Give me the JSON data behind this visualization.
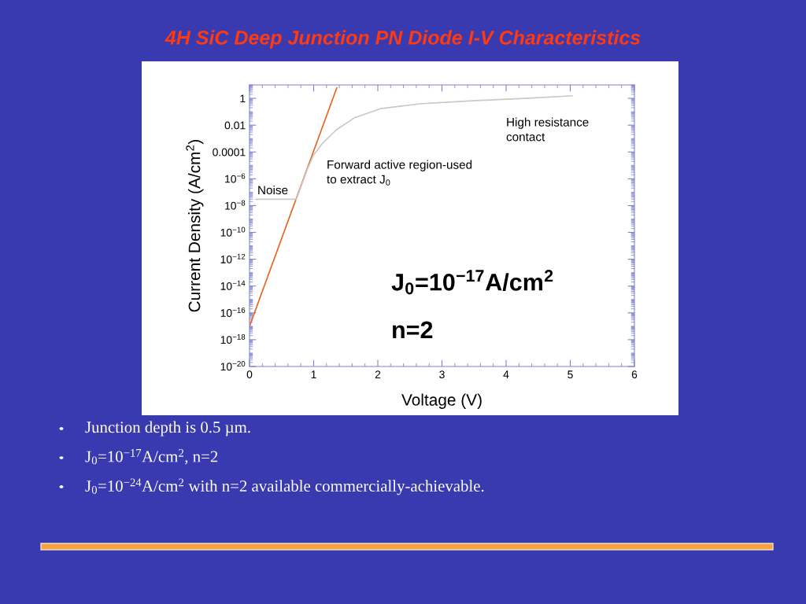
{
  "chart_data": {
    "type": "line",
    "title": "4H SiC Deep Junction PN Diode I-V Characteristics",
    "xlabel": "Voltage (V)",
    "ylabel": "Current Density (A/cm$^{2}$)",
    "series": [
      {
        "color": "#e8641e",
        "x": [
          0,
          1.36
        ],
        "values": [
          1e-17,
          6
        ]
      },
      {
        "color": "#c8c8c8",
        "x": [
          0.1,
          0.3,
          0.5,
          0.67,
          0.73,
          0.9,
          1.0,
          1.14,
          1.35,
          1.63,
          2.04,
          2.65,
          3.47,
          4.29,
          5.03
        ],
        "values": [
          3e-08,
          3e-08,
          3e-08,
          3e-08,
          3e-08,
          5e-06,
          6e-05,
          0.00045,
          0.0044,
          0.034,
          0.17,
          0.39,
          0.66,
          1,
          1.55
        ]
      }
    ],
    "log": "y",
    "xlim": [
      0,
      6
    ],
    "xticks": [
      0,
      1,
      2,
      3,
      4,
      5,
      6
    ],
    "ylim": [
      1e-20,
      10
    ],
    "yticks": [
      {
        "value": 1e-20,
        "label": "10$^{−20}$"
      },
      {
        "value": 1e-18,
        "label": "10$^{−18}$"
      },
      {
        "value": 1e-16,
        "label": "10$^{−16}$"
      },
      {
        "value": 1e-14,
        "label": "10$^{−14}$"
      },
      {
        "value": 1e-12,
        "label": "10$^{−12}$"
      },
      {
        "value": 1e-10,
        "label": "10$^{−10}$"
      },
      {
        "value": 1e-08,
        "label": "10$^{−8}$"
      },
      {
        "value": 1e-06,
        "label": "10$^{−6}$"
      },
      {
        "value": 0.0001,
        "label": "0.0001"
      },
      {
        "value": 0.01,
        "label": "0.01"
      },
      {
        "value": 1,
        "label": "1"
      }
    ],
    "grid": false,
    "legend": false,
    "marker": "none",
    "line_style": "solid",
    "annotations": [
      "Noise",
      "Forward active region-used\nto extract J$_{0}$",
      "High resistance\ncontact",
      "J$_{0}$=10$^{−17}$A/cm$^{2}$",
      "n=2",
      "Junction depth is 0.5 µm.",
      "J$_{0}$=10$^{−17}$A/cm$^{2}$, n=2",
      "J$_{0}$=10$^{−24}$A/cm$^{2}$ with n=2 available commercially-achievable."
    ]
  }
}
